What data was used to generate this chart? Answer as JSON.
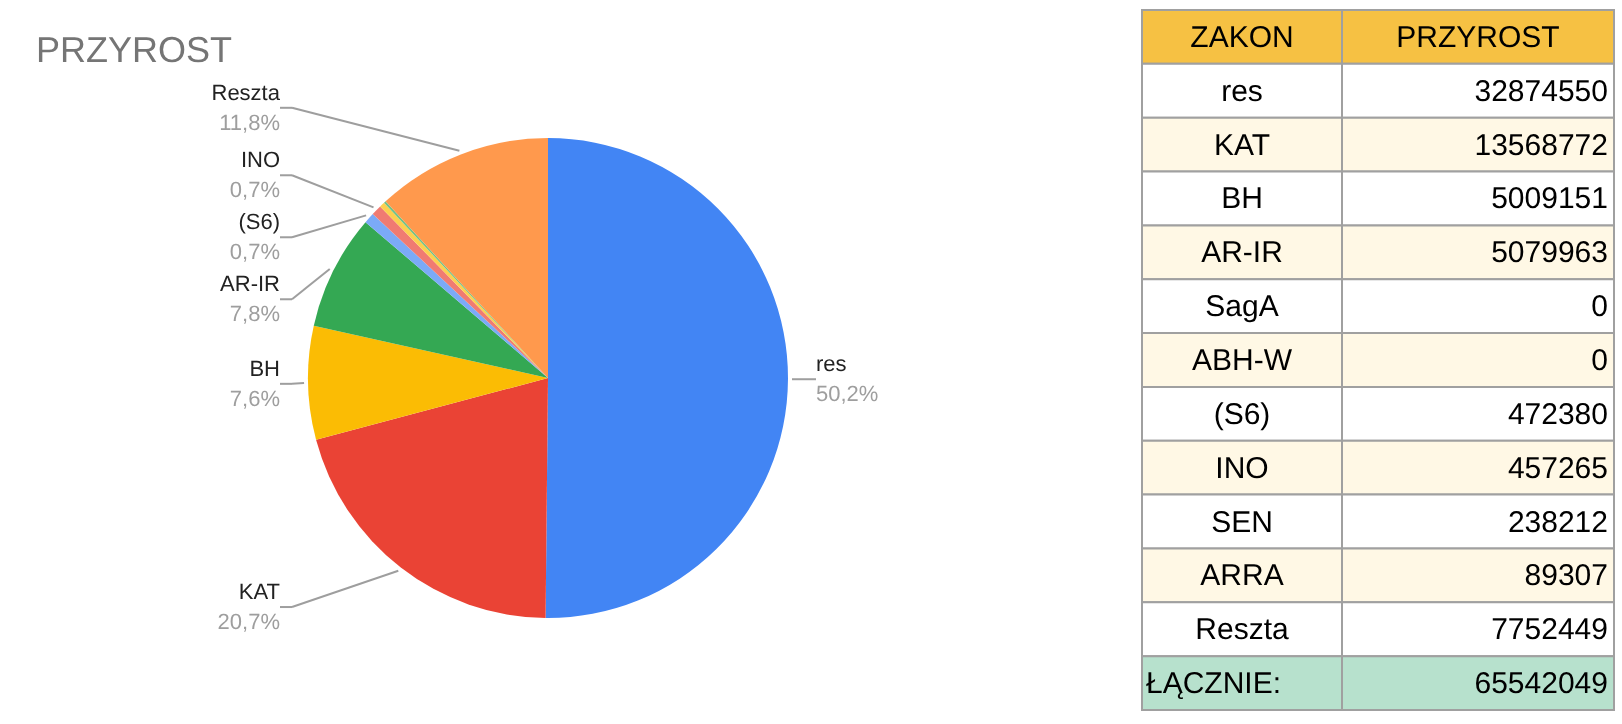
{
  "chart_data": [
    {
      "type": "pie",
      "title": "PRZYROST",
      "categories": [
        "res",
        "KAT",
        "BH",
        "AR-IR",
        null,
        null,
        "(S6)",
        "INO",
        null,
        null,
        "Reszta"
      ],
      "values": [
        50.16,
        20.7,
        7.64,
        7.75,
        0,
        0,
        0.72,
        0.7,
        0.36,
        0.14,
        11.83
      ],
      "colors": [
        "#4285f4",
        "#ea4335",
        "#fbbc04",
        "#34a853",
        "#ff6d01",
        "#46bdc6",
        "#7baaf7",
        "#f07b72",
        "#fcd04f",
        "#71c287",
        "#ff994d"
      ],
      "value_labels": [
        "50,2%",
        "20,7%",
        "7,6%",
        "7,8%",
        null,
        null,
        "0,7%",
        "0,7%",
        null,
        null,
        "11,8%"
      ]
    },
    {
      "type": "other",
      "categories": [
        "res",
        "KAT",
        "BH",
        "AR-IR",
        "SagA",
        "ABH-W",
        "(S6)",
        "INO",
        "SEN",
        "ARRA",
        "Reszta"
      ],
      "values": [
        32874550,
        13568772,
        5009151,
        5079963,
        0,
        0,
        472380,
        457265,
        238212,
        89307,
        7752449
      ],
      "data_labels": true,
      "annotations": [
        "ZAKON",
        "PRZYROST",
        "ŁĄCZNIE:",
        "65542049"
      ]
    }
  ]
}
